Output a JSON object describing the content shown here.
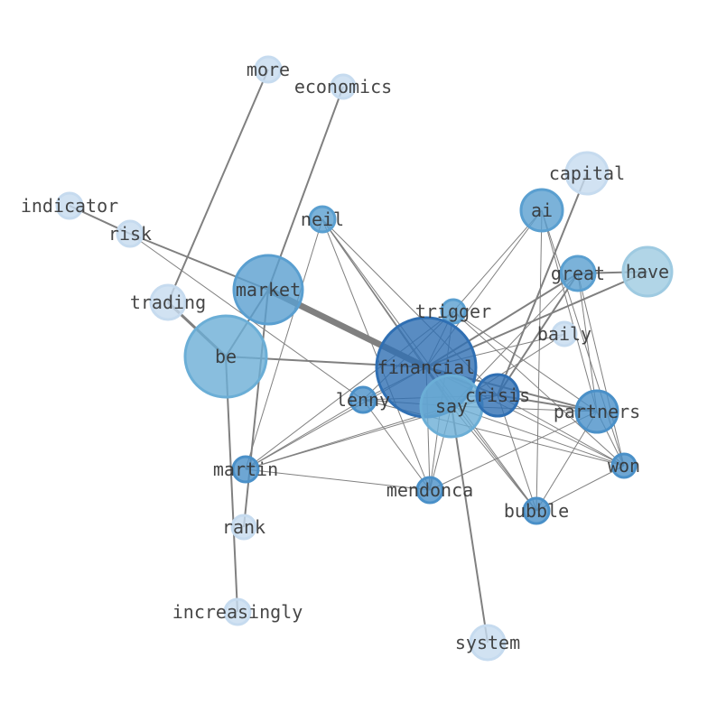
{
  "nodes": [
    {
      "id": "more",
      "label": "more",
      "tone": "light"
    },
    {
      "id": "economics",
      "label": "economics",
      "tone": "light"
    },
    {
      "id": "capital",
      "label": "capital",
      "tone": "light"
    },
    {
      "id": "indicator",
      "label": "indicator",
      "tone": "light"
    },
    {
      "id": "risk",
      "label": "risk",
      "tone": "light"
    },
    {
      "id": "ai",
      "label": "ai",
      "tone": "medium"
    },
    {
      "id": "neil",
      "label": "neil",
      "tone": "medium"
    },
    {
      "id": "market",
      "label": "market",
      "tone": "medium"
    },
    {
      "id": "great",
      "label": "great",
      "tone": "medium"
    },
    {
      "id": "have",
      "label": "have",
      "tone": "light-medium"
    },
    {
      "id": "trading",
      "label": "trading",
      "tone": "light"
    },
    {
      "id": "trigger",
      "label": "trigger",
      "tone": "medium"
    },
    {
      "id": "baily",
      "label": "baily",
      "tone": "light"
    },
    {
      "id": "be",
      "label": "be",
      "tone": "medium-light"
    },
    {
      "id": "financial",
      "label": "financial",
      "tone": "dark"
    },
    {
      "id": "lenny",
      "label": "lenny",
      "tone": "medium-dark"
    },
    {
      "id": "say",
      "label": "say",
      "tone": "medium-light"
    },
    {
      "id": "crisis",
      "label": "crisis",
      "tone": "dark"
    },
    {
      "id": "partners",
      "label": "partners",
      "tone": "medium-dark"
    },
    {
      "id": "won",
      "label": "won",
      "tone": "medium-dark"
    },
    {
      "id": "martin",
      "label": "martin",
      "tone": "medium-dark"
    },
    {
      "id": "mendonca",
      "label": "mendonca",
      "tone": "medium-dark"
    },
    {
      "id": "bubble",
      "label": "bubble",
      "tone": "medium-dark"
    },
    {
      "id": "rank",
      "label": "rank",
      "tone": "light"
    },
    {
      "id": "increasingly",
      "label": "increasingly",
      "tone": "light"
    },
    {
      "id": "system",
      "label": "system",
      "tone": "light"
    }
  ],
  "edges": [
    [
      "more",
      "trading",
      2
    ],
    [
      "economics",
      "market",
      2
    ],
    [
      "market",
      "rank",
      2
    ],
    [
      "indicator",
      "risk",
      2
    ],
    [
      "risk",
      "market",
      2
    ],
    [
      "market",
      "financial",
      7
    ],
    [
      "market",
      "be",
      2
    ],
    [
      "trading",
      "be",
      3
    ],
    [
      "be",
      "financial",
      2
    ],
    [
      "be",
      "increasingly",
      2
    ],
    [
      "risk",
      "lenny",
      1
    ],
    [
      "say",
      "system",
      2
    ],
    [
      "capital",
      "crisis",
      2
    ],
    [
      "great",
      "have",
      2
    ],
    [
      "have",
      "financial",
      2
    ],
    [
      "great",
      "financial",
      2
    ],
    [
      "great",
      "crisis",
      2
    ],
    [
      "great",
      "say",
      1
    ],
    [
      "ai",
      "trigger",
      1
    ],
    [
      "ai",
      "financial",
      1
    ],
    [
      "ai",
      "bubble",
      1
    ],
    [
      "ai",
      "won",
      1
    ],
    [
      "ai",
      "partners",
      1
    ],
    [
      "trigger",
      "financial",
      1
    ],
    [
      "trigger",
      "won",
      1
    ],
    [
      "trigger",
      "partners",
      1
    ],
    [
      "trigger",
      "lenny",
      1
    ],
    [
      "trigger",
      "martin",
      1
    ],
    [
      "trigger",
      "mendonca",
      1
    ],
    [
      "baily",
      "financial",
      1
    ],
    [
      "baily",
      "say",
      1
    ],
    [
      "crisis",
      "partners",
      2
    ],
    [
      "crisis",
      "won",
      1
    ],
    [
      "crisis",
      "bubble",
      1
    ],
    [
      "crisis",
      "financial",
      2
    ],
    [
      "partners",
      "won",
      1
    ],
    [
      "partners",
      "bubble",
      1
    ],
    [
      "partners",
      "mendonca",
      1
    ],
    [
      "bubble",
      "won",
      1
    ],
    [
      "bubble",
      "say",
      1
    ],
    [
      "bubble",
      "financial",
      1
    ],
    [
      "won",
      "say",
      1
    ],
    [
      "lenny",
      "won",
      1
    ],
    [
      "great",
      "partners",
      1
    ],
    [
      "great",
      "won",
      1
    ],
    [
      "neil",
      "mendonca",
      1
    ],
    [
      "neil",
      "crisis",
      1
    ],
    [
      "neil",
      "say",
      1
    ],
    [
      "neil",
      "financial",
      1
    ],
    [
      "neil",
      "bubble",
      1
    ],
    [
      "neil",
      "martin",
      1
    ],
    [
      "martin",
      "lenny",
      1
    ],
    [
      "martin",
      "financial",
      1
    ],
    [
      "martin",
      "say",
      1
    ],
    [
      "martin",
      "crisis",
      1
    ],
    [
      "martin",
      "mendonca",
      1
    ],
    [
      "lenny",
      "financial",
      1
    ],
    [
      "lenny",
      "say",
      1
    ],
    [
      "lenny",
      "crisis",
      1
    ],
    [
      "lenny",
      "mendonca",
      1
    ],
    [
      "say",
      "financial",
      2
    ],
    [
      "say",
      "crisis",
      1
    ],
    [
      "say",
      "mendonca",
      1
    ],
    [
      "financial",
      "partners",
      2
    ],
    [
      "financial",
      "mendonca",
      1
    ],
    [
      "financial",
      "won",
      1
    ],
    [
      "say",
      "partners",
      1
    ]
  ],
  "colors": {
    "light": "#c6dbef",
    "light-medium": "#9ecae1",
    "medium-light": "#6baed6",
    "medium": "#5a9fd0",
    "medium-dark": "#4a90c8",
    "dark": "#2f6fb3",
    "edge": "#808080",
    "label": "#333333"
  }
}
